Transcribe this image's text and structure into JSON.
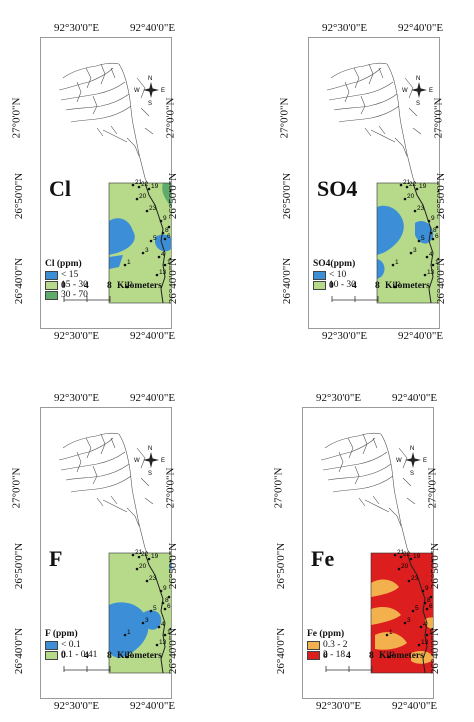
{
  "coords": {
    "lon_left": "92°30'0\"E",
    "lon_right": "92°40'0\"E",
    "lat_top": "27°0'0\"N",
    "lat_mid": "26°50'0\"N",
    "lat_bot": "26°40'0\"N"
  },
  "compass": {
    "n": "N",
    "s": "S",
    "e": "E",
    "w": "W"
  },
  "scale_bar": {
    "ticks": [
      "0",
      "4",
      "8"
    ],
    "unit": "Kilometers"
  },
  "site_labels": [
    "1",
    "2",
    "3",
    "4",
    "5",
    "6",
    "7",
    "8",
    "9",
    "10",
    "11",
    "12",
    "13",
    "14",
    "15",
    "16",
    "17",
    "18",
    "19",
    "20",
    "21",
    "22",
    "23"
  ],
  "panels": [
    {
      "name": "Cl",
      "legend_title": "Cl (ppm)",
      "classes": [
        {
          "label": "< 15",
          "color": "#3c8fd6"
        },
        {
          "label": "15 - 30",
          "color": "#b6d98a"
        },
        {
          "label": "30 - 70",
          "color": "#5fab6b"
        }
      ]
    },
    {
      "name": "SO4",
      "legend_title": "SO4(ppm)",
      "classes": [
        {
          "label": "< 10",
          "color": "#3c8fd6"
        },
        {
          "label": "10 - 30",
          "color": "#b6d98a"
        }
      ]
    },
    {
      "name": "F",
      "legend_title": "F (ppm)",
      "classes": [
        {
          "label": "< 0.1",
          "color": "#3c8fd6"
        },
        {
          "label": "0.1 - 0.41",
          "color": "#b6d98a"
        }
      ]
    },
    {
      "name": "Fe",
      "legend_title": "Fe (ppm)",
      "classes": [
        {
          "label": "0.3 - 2",
          "color": "#f2b14c"
        },
        {
          "label": "2 - 18",
          "color": "#dd1e1e"
        }
      ]
    }
  ]
}
